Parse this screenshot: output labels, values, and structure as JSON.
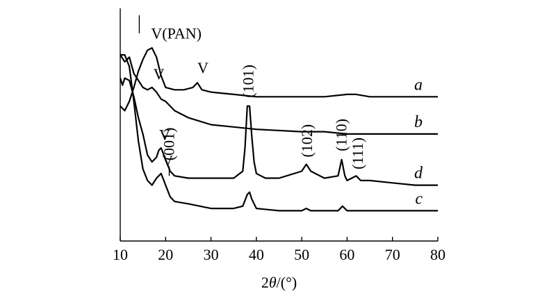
{
  "chart_data": {
    "type": "line",
    "title": "",
    "xlabel_prefix": "2",
    "xlabel_symbol": "θ",
    "xlabel_suffix": "/(°)",
    "ylabel": "",
    "xlim": [
      10,
      80
    ],
    "xticks": [
      "10",
      "20",
      "30",
      "40",
      "50",
      "60",
      "70",
      "80"
    ],
    "grid": false,
    "colors": {
      "line": "#000000",
      "axis": "#000000",
      "background": "#ffffff"
    },
    "series": [
      {
        "name": "a",
        "x": [
          10,
          11,
          12,
          13,
          14,
          15,
          16,
          17,
          18,
          19,
          20,
          22,
          24,
          26,
          27,
          28,
          30,
          35,
          40,
          45,
          50,
          55,
          60,
          62,
          65,
          70,
          75,
          80
        ],
        "y": [
          0.42,
          0.44,
          0.4,
          0.34,
          0.27,
          0.22,
          0.18,
          0.17,
          0.21,
          0.29,
          0.34,
          0.35,
          0.35,
          0.34,
          0.32,
          0.35,
          0.36,
          0.37,
          0.38,
          0.38,
          0.38,
          0.38,
          0.37,
          0.37,
          0.38,
          0.38,
          0.38,
          0.38
        ]
      },
      {
        "name": "b",
        "x": [
          10,
          11,
          12,
          13,
          14,
          15,
          16,
          17,
          18,
          19,
          20,
          22,
          25,
          30,
          35,
          40,
          50,
          55,
          60,
          70,
          80
        ],
        "y": [
          0.2,
          0.23,
          0.21,
          0.28,
          0.31,
          0.34,
          0.35,
          0.34,
          0.36,
          0.39,
          0.4,
          0.44,
          0.47,
          0.5,
          0.51,
          0.52,
          0.53,
          0.53,
          0.54,
          0.54,
          0.54
        ]
      },
      {
        "name": "c",
        "x": [
          10,
          11,
          12,
          13,
          14,
          15,
          16,
          17,
          18,
          19,
          20,
          21,
          22,
          25,
          30,
          35,
          37,
          38,
          38.5,
          39,
          40,
          45,
          50,
          51,
          52,
          55,
          58,
          59,
          60,
          65,
          70,
          80
        ],
        "y": [
          0.2,
          0.2,
          0.25,
          0.4,
          0.57,
          0.69,
          0.74,
          0.76,
          0.73,
          0.71,
          0.76,
          0.81,
          0.83,
          0.84,
          0.86,
          0.86,
          0.85,
          0.8,
          0.79,
          0.82,
          0.86,
          0.87,
          0.87,
          0.86,
          0.87,
          0.87,
          0.87,
          0.85,
          0.87,
          0.87,
          0.87,
          0.87
        ]
      },
      {
        "name": "d",
        "x": [
          10,
          10.5,
          11,
          12,
          13,
          14,
          15,
          16,
          17,
          18,
          18.5,
          19,
          20,
          21,
          22,
          25,
          30,
          35,
          37,
          37.5,
          38,
          38.5,
          39,
          39.5,
          40,
          42,
          45,
          50,
          51,
          52,
          55,
          58,
          58.8,
          59.5,
          60,
          62,
          63,
          65,
          70,
          75,
          80
        ],
        "y": [
          0.3,
          0.33,
          0.3,
          0.31,
          0.38,
          0.47,
          0.54,
          0.63,
          0.66,
          0.64,
          0.61,
          0.6,
          0.65,
          0.7,
          0.72,
          0.73,
          0.73,
          0.73,
          0.7,
          0.6,
          0.42,
          0.42,
          0.55,
          0.66,
          0.71,
          0.73,
          0.73,
          0.7,
          0.67,
          0.7,
          0.73,
          0.72,
          0.65,
          0.72,
          0.74,
          0.72,
          0.74,
          0.74,
          0.75,
          0.76,
          0.76
        ]
      }
    ],
    "annotations": [
      {
        "text": "V",
        "x": 18.6,
        "series": "d"
      },
      {
        "text": "(001)",
        "x": 20.8,
        "series": "d",
        "rotated": true
      },
      {
        "text": "(101)",
        "x": 38.3,
        "series": "d",
        "rotated": true
      },
      {
        "text": "(102)",
        "x": 51.2,
        "series": "d",
        "rotated": true
      },
      {
        "text": "(110)",
        "x": 58.8,
        "series": "d",
        "rotated": true
      },
      {
        "text": "(111)",
        "x": 62.4,
        "series": "d",
        "rotated": true
      },
      {
        "text": "V",
        "x": 19.2,
        "series": "c"
      },
      {
        "text": "V",
        "x": 17.3,
        "series": "b"
      },
      {
        "text": "V(PAN)",
        "x": 16.8,
        "series": "a"
      },
      {
        "text": "V",
        "x": 27.0,
        "series": "a"
      }
    ]
  }
}
